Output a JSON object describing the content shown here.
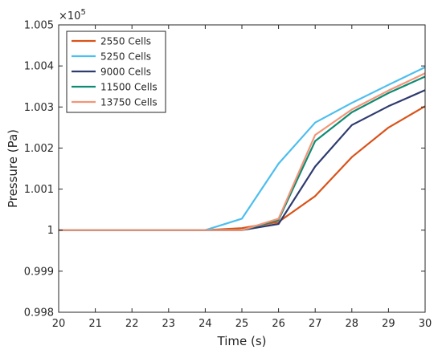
{
  "chart_data": {
    "type": "line",
    "xlabel": "Time (s)",
    "ylabel": "Pressure (Pa)",
    "y_exponent_label": "×10",
    "y_exponent_power": "5",
    "x": [
      20,
      21,
      22,
      23,
      24,
      25,
      26,
      27,
      28,
      29,
      30
    ],
    "xlim": [
      20,
      30
    ],
    "ylim": [
      0.998,
      1.005
    ],
    "x_ticks": [
      20,
      21,
      22,
      23,
      24,
      25,
      26,
      27,
      28,
      29,
      30
    ],
    "x_tick_labels": [
      "20",
      "21",
      "22",
      "23",
      "24",
      "25",
      "26",
      "27",
      "28",
      "29",
      "30"
    ],
    "y_ticks": [
      0.998,
      0.999,
      1.0,
      1.001,
      1.002,
      1.003,
      1.004,
      1.005
    ],
    "y_tick_labels": [
      "0.998",
      "0.999",
      "1",
      "1.001",
      "1.002",
      "1.003",
      "1.004",
      "1.005"
    ],
    "grid": false,
    "legend_position": "top-left",
    "series": [
      {
        "name": "2550 Cells",
        "color": "#d95319",
        "values": [
          1.0,
          1.0,
          1.0,
          1.0,
          1.0,
          1.00005,
          1.0002,
          1.00083,
          1.00178,
          1.0025,
          1.00302
        ]
      },
      {
        "name": "5250 Cells",
        "color": "#4dbeee",
        "values": [
          1.0,
          1.0,
          1.0,
          1.0,
          1.0,
          1.00028,
          1.00162,
          1.00262,
          1.0031,
          1.00354,
          1.00397
        ]
      },
      {
        "name": "9000 Cells",
        "color": "#2e3b6e",
        "values": [
          1.0,
          1.0,
          1.0,
          1.0,
          1.0,
          1.0,
          1.00015,
          1.00155,
          1.00256,
          1.00302,
          1.00341
        ]
      },
      {
        "name": "11500 Cells",
        "color": "#0f8b72",
        "values": [
          1.0,
          1.0,
          1.0,
          1.0,
          1.0,
          1.0,
          1.00025,
          1.00217,
          1.00287,
          1.00334,
          1.00374
        ]
      },
      {
        "name": "13750 Cells",
        "color": "#f2957a",
        "values": [
          1.0,
          1.0,
          1.0,
          1.0,
          1.0,
          1.0,
          1.00028,
          1.00232,
          1.00294,
          1.0034,
          1.00382
        ]
      }
    ]
  }
}
